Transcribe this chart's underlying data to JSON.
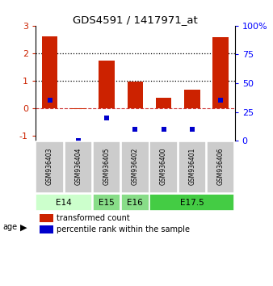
{
  "title": "GDS4591 / 1417971_at",
  "samples": [
    "GSM936403",
    "GSM936404",
    "GSM936405",
    "GSM936402",
    "GSM936400",
    "GSM936401",
    "GSM936406"
  ],
  "transformed_counts": [
    2.62,
    -0.05,
    1.72,
    0.95,
    0.38,
    0.68,
    2.57
  ],
  "percentile_ranks": [
    35,
    0,
    20,
    10,
    10,
    10,
    35
  ],
  "age_groups": [
    {
      "label": "E14",
      "start": 0,
      "end": 2,
      "color": "#ccffcc"
    },
    {
      "label": "E15",
      "start": 2,
      "end": 3,
      "color": "#88dd88"
    },
    {
      "label": "E16",
      "start": 3,
      "end": 4,
      "color": "#88dd88"
    },
    {
      "label": "E17.5",
      "start": 4,
      "end": 7,
      "color": "#44cc44"
    }
  ],
  "bar_color": "#cc2200",
  "dot_color_red": "#cc2200",
  "dot_color_blue": "#0000cc",
  "ylim_left": [
    -1.2,
    3.0
  ],
  "ylim_right": [
    0,
    100
  ],
  "yticks_left": [
    -1,
    0,
    1,
    2,
    3
  ],
  "yticks_right": [
    0,
    25,
    50,
    75,
    100
  ],
  "hline_values": [
    1.0,
    2.0
  ],
  "zero_line_color": "#cc3333",
  "dotted_line_color": "#000000",
  "background_color": "#ffffff",
  "sample_box_color": "#cccccc",
  "age_label": "age"
}
